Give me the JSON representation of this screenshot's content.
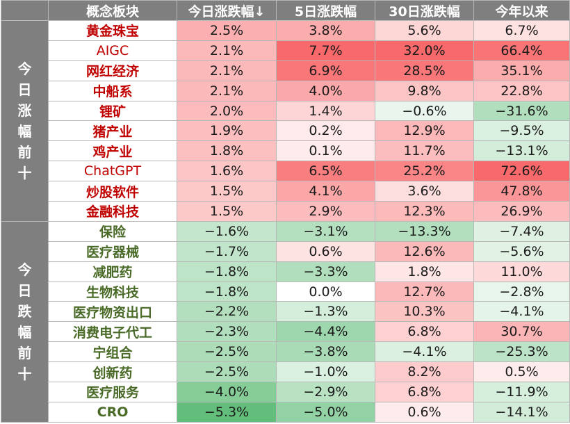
{
  "chart_data": {
    "type": "table",
    "columns": [
      "概念板块",
      "今日涨跌幅↓",
      "5日涨跌幅",
      "30日涨跌幅",
      "今年以来"
    ],
    "groups": [
      {
        "label": "今日涨幅前十",
        "direction": "up",
        "rows": [
          {
            "name": "黄金珠宝",
            "values": [
              2.5,
              3.8,
              5.6,
              6.7
            ],
            "text": [
              "2.5%",
              "3.8%",
              "5.6%",
              "6.7%"
            ]
          },
          {
            "name": "AIGC",
            "values": [
              2.1,
              7.7,
              32.0,
              66.4
            ],
            "text": [
              "2.1%",
              "7.7%",
              "32.0%",
              "66.4%"
            ]
          },
          {
            "name": "网红经济",
            "values": [
              2.1,
              6.9,
              28.5,
              35.1
            ],
            "text": [
              "2.1%",
              "6.9%",
              "28.5%",
              "35.1%"
            ]
          },
          {
            "name": "中船系",
            "values": [
              2.1,
              4.0,
              9.8,
              22.8
            ],
            "text": [
              "2.1%",
              "4.0%",
              "9.8%",
              "22.8%"
            ]
          },
          {
            "name": "锂矿",
            "values": [
              2.0,
              1.4,
              -0.6,
              -31.6
            ],
            "text": [
              "2.0%",
              "1.4%",
              "−0.6%",
              "−31.6%"
            ]
          },
          {
            "name": "猪产业",
            "values": [
              1.9,
              0.2,
              12.9,
              -9.5
            ],
            "text": [
              "1.9%",
              "0.2%",
              "12.9%",
              "−9.5%"
            ]
          },
          {
            "name": "鸡产业",
            "values": [
              1.8,
              0.1,
              11.7,
              -13.1
            ],
            "text": [
              "1.8%",
              "0.1%",
              "11.7%",
              "−13.1%"
            ]
          },
          {
            "name": "ChatGPT",
            "values": [
              1.6,
              6.5,
              25.2,
              72.6
            ],
            "text": [
              "1.6%",
              "6.5%",
              "25.2%",
              "72.6%"
            ]
          },
          {
            "name": "炒股软件",
            "values": [
              1.5,
              4.1,
              3.6,
              47.8
            ],
            "text": [
              "1.5%",
              "4.1%",
              "3.6%",
              "47.8%"
            ]
          },
          {
            "name": "金融科技",
            "values": [
              1.5,
              2.9,
              12.3,
              26.9
            ],
            "text": [
              "1.5%",
              "2.9%",
              "12.3%",
              "26.9%"
            ]
          }
        ]
      },
      {
        "label": "今日跌幅前十",
        "direction": "down",
        "rows": [
          {
            "name": "保险",
            "values": [
              -1.6,
              -3.1,
              -13.3,
              -7.4
            ],
            "text": [
              "−1.6%",
              "−3.1%",
              "−13.3%",
              "−7.4%"
            ]
          },
          {
            "name": "医疗器械",
            "values": [
              -1.7,
              0.6,
              12.6,
              -5.6
            ],
            "text": [
              "−1.7%",
              "0.6%",
              "12.6%",
              "−5.6%"
            ]
          },
          {
            "name": "减肥药",
            "values": [
              -1.8,
              -3.3,
              1.8,
              11.0
            ],
            "text": [
              "−1.8%",
              "−3.3%",
              "1.8%",
              "11.0%"
            ]
          },
          {
            "name": "生物科技",
            "values": [
              -1.8,
              0.0,
              12.7,
              -2.8
            ],
            "text": [
              "−1.8%",
              "0.0%",
              "12.7%",
              "−2.8%"
            ]
          },
          {
            "name": "医疗物资出口",
            "values": [
              -2.2,
              -1.3,
              10.3,
              -4.1
            ],
            "text": [
              "−2.2%",
              "−1.3%",
              "10.3%",
              "−4.1%"
            ]
          },
          {
            "name": "消费电子代工",
            "values": [
              -2.3,
              -4.4,
              6.8,
              30.7
            ],
            "text": [
              "−2.3%",
              "−4.4%",
              "6.8%",
              "30.7%"
            ]
          },
          {
            "name": "宁组合",
            "values": [
              -2.5,
              -3.8,
              -4.1,
              -25.3
            ],
            "text": [
              "−2.5%",
              "−3.8%",
              "−4.1%",
              "−25.3%"
            ]
          },
          {
            "name": "创新药",
            "values": [
              -2.5,
              -1.0,
              8.2,
              0.5
            ],
            "text": [
              "−2.5%",
              "−1.0%",
              "8.2%",
              "0.5%"
            ]
          },
          {
            "name": "医疗服务",
            "values": [
              -4.0,
              -2.9,
              6.8,
              -11.9
            ],
            "text": [
              "−4.0%",
              "−2.9%",
              "6.8%",
              "−11.9%"
            ]
          },
          {
            "name": "CRO",
            "values": [
              -5.3,
              -5.0,
              0.6,
              -14.1
            ],
            "text": [
              "−5.3%",
              "−5.0%",
              "0.6%",
              "−14.1%"
            ]
          }
        ]
      }
    ],
    "color_scale": {
      "positive": "#f8696b",
      "negative": "#63be7b",
      "neutral": "#ffffff"
    }
  }
}
